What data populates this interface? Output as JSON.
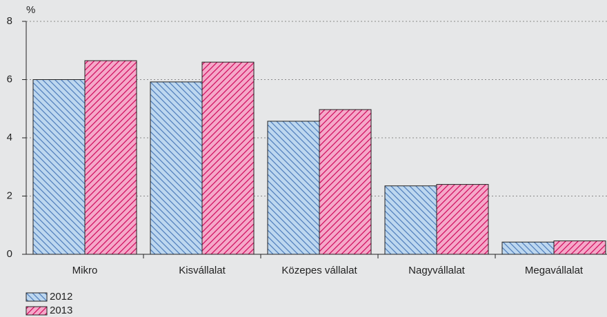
{
  "chart_data": {
    "type": "bar",
    "y_label": "%",
    "categories": [
      "Mikro",
      "Kisvállalat",
      "Közepes vállalat",
      "Nagyvállalat",
      "Megavállalat"
    ],
    "series": [
      {
        "name": "2012",
        "color": "#bdd7ef",
        "hatch_color": "#4f7dbb",
        "hatch": "\\",
        "values": [
          6.0,
          5.92,
          4.57,
          2.35,
          0.42
        ]
      },
      {
        "name": "2013",
        "color": "#f5a8c9",
        "hatch_color": "#cf0a5c",
        "hatch": "/",
        "values": [
          6.65,
          6.6,
          4.97,
          2.4,
          0.46
        ]
      }
    ],
    "ylim": [
      0,
      8
    ],
    "yticks": [
      0,
      2,
      4,
      6,
      8
    ],
    "grid": true,
    "legend": "bottom-left"
  }
}
